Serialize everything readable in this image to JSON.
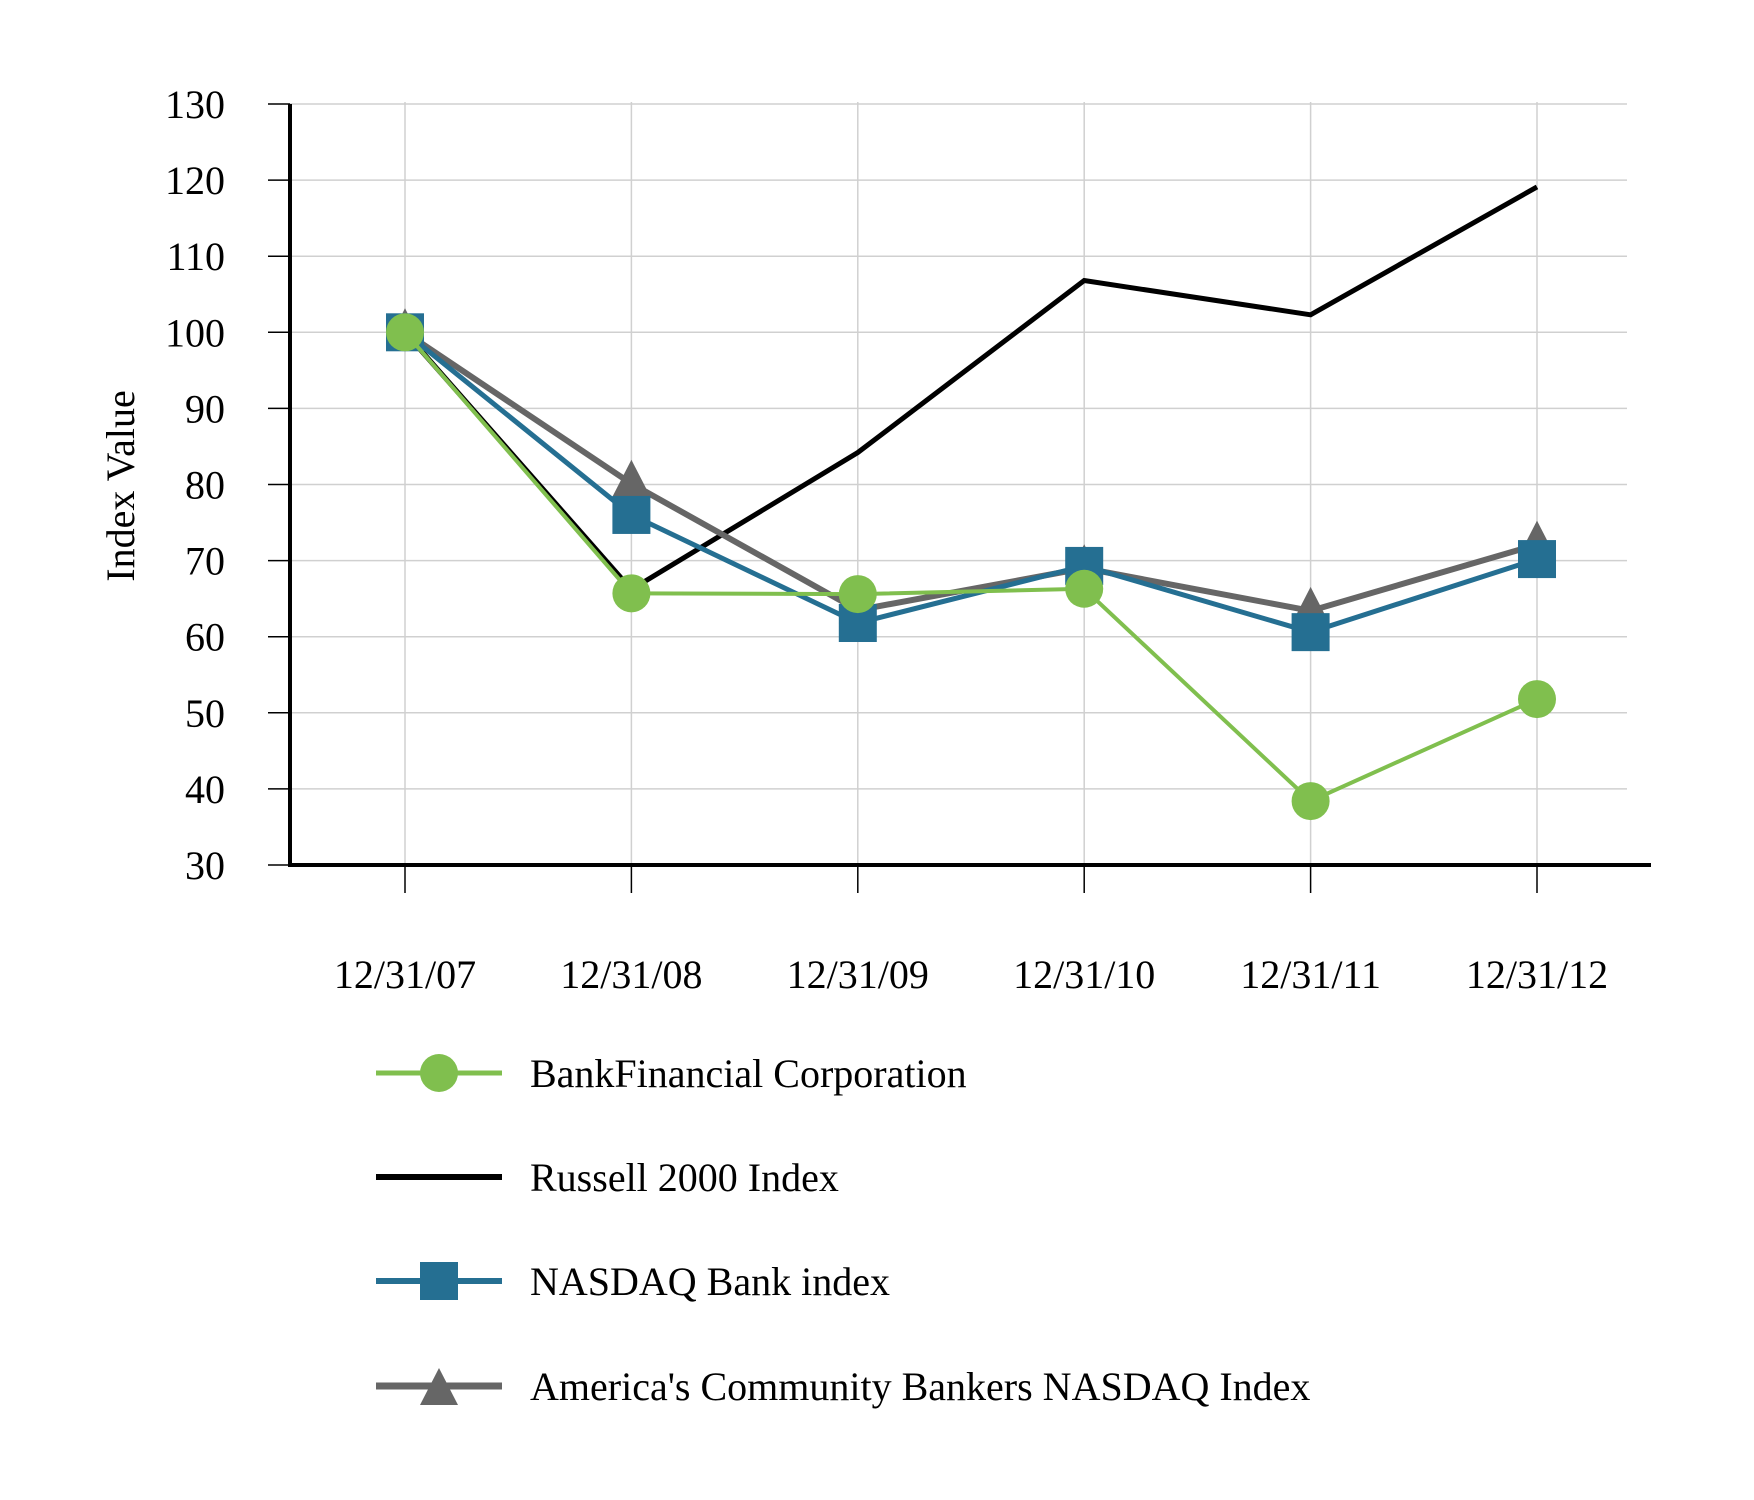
{
  "chart_data": {
    "type": "line",
    "title": "",
    "xlabel": "",
    "ylabel": "Index Value",
    "ylim": [
      30,
      130
    ],
    "yticks": [
      30,
      40,
      50,
      60,
      70,
      80,
      90,
      100,
      110,
      120,
      130
    ],
    "ytick_labels": [
      "30",
      "40",
      "50",
      "60",
      "70",
      "80",
      "90",
      "100",
      "110",
      "120",
      "130"
    ],
    "categories": [
      "12/31/07",
      "12/31/08",
      "12/31/09",
      "12/31/10",
      "12/31/11",
      "12/31/12"
    ],
    "grid": true,
    "legend_position": "bottom",
    "series": [
      {
        "name": "BankFinancial Corporation",
        "color": "#80bf4e",
        "marker": "circle",
        "values": [
          100,
          65.7,
          65.6,
          66.3,
          38.4,
          51.8
        ]
      },
      {
        "name": "Russell 2000 Index",
        "color": "#000000",
        "marker": "none",
        "values": [
          100,
          66.2,
          84.2,
          106.8,
          102.3,
          119.1
        ]
      },
      {
        "name": "NASDAQ Bank index",
        "color": "#256f92",
        "marker": "square",
        "values": [
          100,
          76.0,
          61.8,
          69.3,
          60.6,
          70.2
        ]
      },
      {
        "name": "America's Community Bankers NASDAQ Index",
        "color": "#666666",
        "marker": "triangle",
        "values": [
          100,
          80.1,
          63.5,
          69.0,
          63.4,
          72.1
        ]
      }
    ]
  }
}
